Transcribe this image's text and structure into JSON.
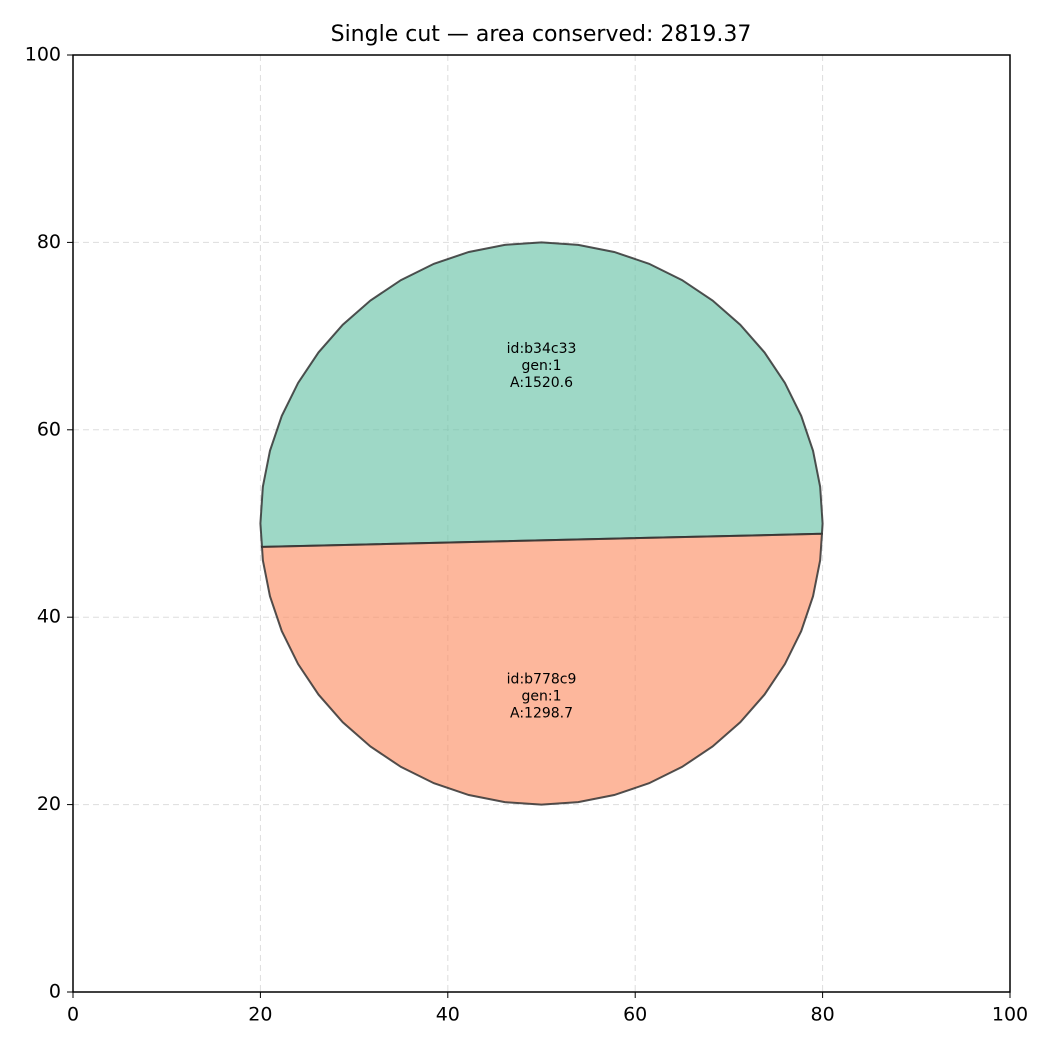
{
  "chart_data": {
    "type": "polygon",
    "title": "Single cut — area conserved: 2819.37",
    "xlim": [
      0,
      100
    ],
    "ylim": [
      0,
      100
    ],
    "xticks": [
      0,
      20,
      40,
      60,
      80,
      100
    ],
    "yticks": [
      0,
      20,
      40,
      60,
      80,
      100
    ],
    "grid": true,
    "shapes": [
      {
        "label": [
          "id:b34c33",
          "gen:1",
          "A:1520.6"
        ],
        "color": "#66c2a5",
        "x": [
          79.93,
          80,
          79.74,
          78.98,
          77.72,
          75.98,
          73.8,
          71.21,
          68.26,
          65,
          61.48,
          57.76,
          53.92,
          50,
          46.08,
          42.24,
          38.52,
          35,
          31.74,
          28.79,
          26.2,
          24.02,
          22.28,
          21.02,
          20.26,
          20,
          20.17
        ],
        "y": [
          48.9,
          50,
          53.92,
          57.76,
          61.48,
          65,
          68.26,
          71.21,
          73.8,
          75.98,
          77.72,
          78.98,
          79.74,
          80,
          79.74,
          78.98,
          77.72,
          75.98,
          73.8,
          71.21,
          68.26,
          65,
          61.48,
          57.76,
          53.92,
          50,
          47.5
        ]
      },
      {
        "label": [
          "id:b778c9",
          "gen:1",
          "A:1298.7"
        ],
        "color": "#fc8d62",
        "x": [
          20.17,
          20.26,
          21.02,
          22.28,
          24.02,
          26.2,
          28.79,
          31.74,
          35,
          38.52,
          42.24,
          46.08,
          50,
          53.92,
          57.76,
          61.48,
          65,
          68.26,
          71.21,
          73.8,
          75.98,
          77.72,
          78.98,
          79.74,
          79.93
        ],
        "y": [
          47.5,
          46.08,
          42.24,
          38.52,
          35,
          31.74,
          28.79,
          26.2,
          24.02,
          22.28,
          21.02,
          20.26,
          20,
          20.26,
          21.02,
          22.28,
          24.02,
          26.2,
          28.79,
          31.74,
          35,
          38.52,
          42.24,
          46.08,
          48.9
        ]
      }
    ]
  }
}
